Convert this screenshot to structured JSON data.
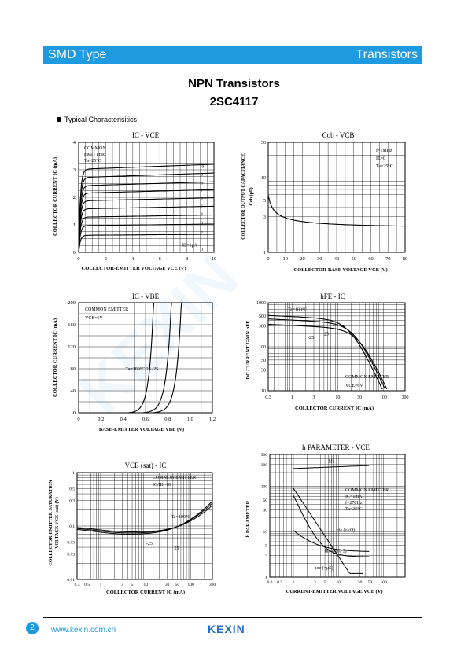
{
  "header": {
    "left": "SMD Type",
    "right": "Transistors"
  },
  "title": "NPN  Transistors",
  "part": "2SC4117",
  "section": "Typical  Characterisitics",
  "charts": {
    "c1": {
      "title": "IC  -  VCE",
      "xlabel": "COLLECTOR-EMITTER VOLTAGE  VCE  (V)",
      "ylabel": "COLLECTOR CURRENT  IC  (mA)",
      "xticks": [
        "0",
        "2",
        "4",
        "6",
        "8",
        "10"
      ],
      "yticks": [
        "0",
        "1",
        "2",
        "3",
        "4"
      ],
      "notes": [
        "COMMON",
        "EMITTER",
        "Ta=25°C"
      ],
      "ib_label": "IB=1μA",
      "curve_labels": [
        "10",
        "9",
        "8",
        "7",
        "6",
        "5",
        "4",
        "3",
        "2",
        "0"
      ]
    },
    "c2": {
      "title": "Cob  -  VCB",
      "xlabel": "COLLECTOR-BASE VOLTAGE  VCB  (V)",
      "ylabel1": "COLLECTOR OUTPUT CAPACITANCE",
      "ylabel2": "Cob  (pF)",
      "xticks": [
        "0",
        "10",
        "20",
        "30",
        "40",
        "50",
        "60",
        "70",
        "80"
      ],
      "yticks": [
        "1",
        "3",
        "5",
        "10",
        "30"
      ],
      "notes": [
        "f=1MHz",
        "IE=0",
        "Ta=25°C"
      ]
    },
    "c3": {
      "title": "IC  -  VBE",
      "xlabel": "BASE-EMITTER VOLTAGE  VBE  (V)",
      "ylabel": "COLLECTOR CURRENT  IC  (mA)",
      "xticks": [
        "0",
        "0.2",
        "0.4",
        "0.6",
        "0.8",
        "1.0",
        "1.2"
      ],
      "yticks": [
        "0",
        "40",
        "80",
        "120",
        "160",
        "200"
      ],
      "notes": [
        "COMMON EMITTER",
        "VCE=6V"
      ],
      "curve_label": "Ta=100°C  25  -25"
    },
    "c4": {
      "title": "hFE  -  IC",
      "xlabel": "COLLECTOR CURRENT  IC  (mA)",
      "ylabel": "DC CURRENT GAIN  hFE",
      "xticks": [
        "0.3",
        "1",
        "3",
        "10",
        "30",
        "100",
        "300"
      ],
      "yticks": [
        "10",
        "30",
        "50",
        "100",
        "300",
        "500",
        "1000"
      ],
      "notes": [
        "COMMON EMITTER",
        "VCE=6V"
      ],
      "curve_labels": [
        "Ta=100°C",
        "25",
        "-25"
      ]
    },
    "c5": {
      "title": "VCE (sat)  -  IC",
      "xlabel": "COLLECTOR CURRENT  IC  (mA)",
      "ylabel1": "COLLECTOR-EMITTER SATURATION",
      "ylabel2": "VOLTAGE  VCE (sat)  (V)",
      "xticks": [
        "0.3",
        "0.5",
        "1",
        "3",
        "5",
        "10",
        "30",
        "50",
        "100",
        "300"
      ],
      "yticks": [
        "0.01",
        "0.03",
        "0.05",
        "0.1",
        "0.3",
        "0.5",
        "1"
      ],
      "notes": [
        "COMMON EMITTER",
        "IC/IB=10"
      ],
      "curve_labels": [
        "Ta=100°C",
        "-25",
        "25"
      ]
    },
    "c6": {
      "title": "h PARAMETER  -  VCE",
      "xlabel": "CURRENT-EMITTER VOLTAGE  VCE  (V)",
      "ylabel": "h PARAMETER",
      "xticks": [
        "0.3",
        "0.5",
        "1",
        "3",
        "5",
        "10",
        "30",
        "50",
        "100"
      ],
      "yticks": [
        "1",
        "3",
        "5",
        "10",
        "30",
        "50",
        "100",
        "300",
        "500"
      ],
      "notes": [
        "COMMON EMITTER",
        "IC=1mA",
        "f=270Hz",
        "Ta=25°C"
      ],
      "curve_labels": [
        "hfe",
        "hie (×kΩ)",
        "hre (×10-5)",
        "hoe (×μS)"
      ]
    }
  },
  "footer": {
    "page": "2",
    "url": "www.kexin.com.cn",
    "logo": "KEXIN"
  }
}
